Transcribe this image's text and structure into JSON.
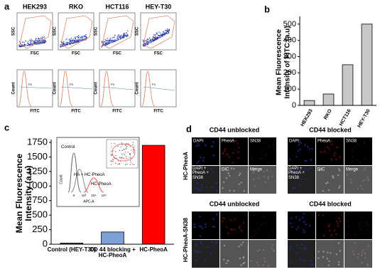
{
  "panels": {
    "a": {
      "label": "a",
      "samples": [
        "HEK293",
        "RKO",
        "HCT116",
        "HEY-T30"
      ],
      "scatter_x": "FSC",
      "scatter_y": "SSC",
      "hist_x": "FITC",
      "hist_y": "Count",
      "gate": "P3"
    },
    "c_inset": {
      "peaks": [
        "Control",
        "HA + HC-PheoA",
        "HC-PheoA"
      ],
      "ylabel": "Count",
      "xlabel": "APC-A",
      "xticks": [
        "0",
        "10³",
        "10⁴",
        "10⁵"
      ]
    },
    "d": {
      "label": "d",
      "conditions": [
        "CD44 unblocked",
        "CD44 blocked"
      ],
      "rows": [
        "HC-PheoA",
        "HC-PheoA-SN38"
      ],
      "channels": [
        "DAPI",
        "PheoA",
        "SN38",
        "DIC",
        "Merge"
      ],
      "combined": "DAPI + PheoA + SN38"
    }
  },
  "chart_data": [
    {
      "type": "bar",
      "panel_label": "b",
      "ylabel": [
        "Mean Fluorescence",
        "Intensity of FITC (a.u)"
      ],
      "categories": [
        "HEK293",
        "RKO",
        "HCT116",
        "HEY-T30"
      ],
      "values": [
        30,
        70,
        250,
        500
      ],
      "color": "#c8c8c8",
      "ylim": [
        0,
        530
      ],
      "yticks": [
        0,
        100,
        200,
        300,
        400,
        500
      ]
    },
    {
      "type": "bar",
      "panel_label": "c",
      "ylabel": [
        "Mean Fluorescence",
        "Intensity (a.u)"
      ],
      "categories": [
        "Control (HEY-T30)",
        "CD 44 blocking + HC-PheoA",
        "HC-PheoA"
      ],
      "values": [
        20,
        210,
        1700
      ],
      "colors": [
        "#555555",
        "#7b9fd6",
        "#ff0000"
      ],
      "ylim": [
        0,
        1750
      ],
      "yticks": [
        0,
        250,
        500,
        750,
        1000,
        1250,
        1500,
        1750
      ]
    }
  ]
}
